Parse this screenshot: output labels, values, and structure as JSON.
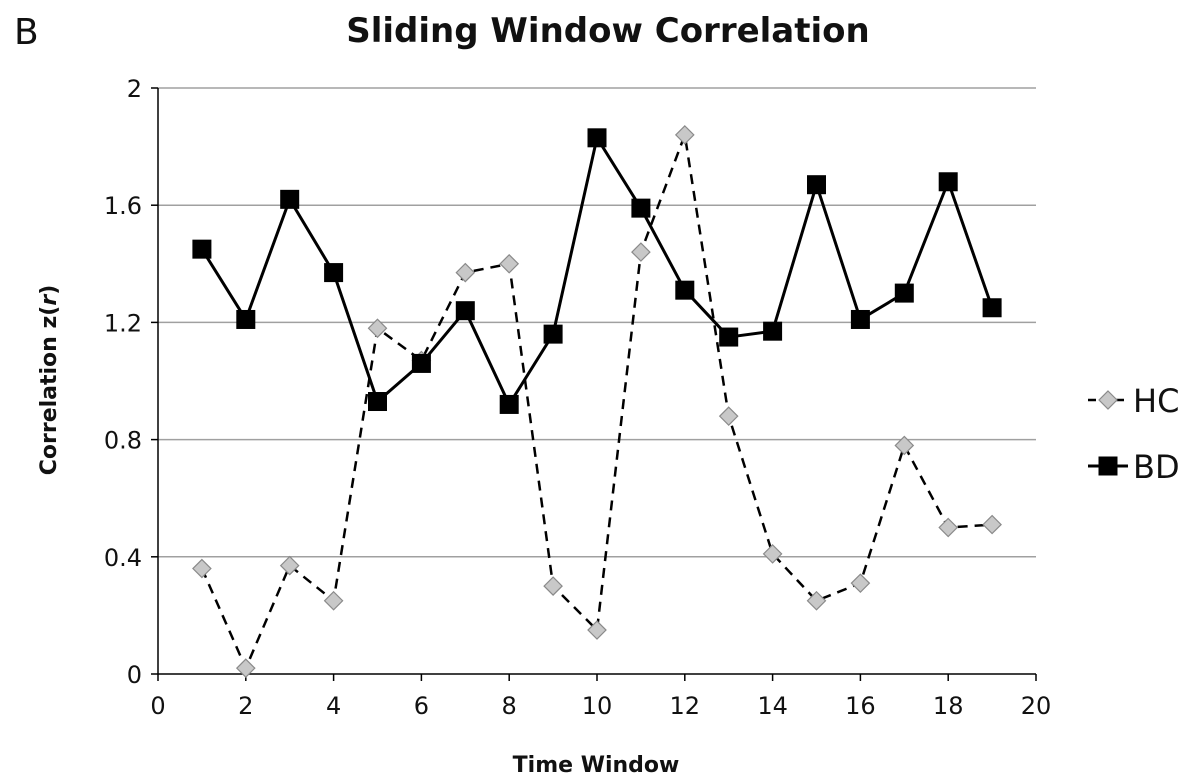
{
  "chart_data": {
    "type": "line",
    "panel_label": "B",
    "title": "Sliding Window Correlation",
    "xlabel": "Time Window",
    "ylabel_main": "Correlation z(",
    "ylabel_var": "r",
    "ylabel_end": ")",
    "xlim": [
      0,
      20
    ],
    "ylim": [
      0,
      2
    ],
    "x_ticks": [
      "0",
      "2",
      "4",
      "6",
      "8",
      "10",
      "12",
      "14",
      "16",
      "18",
      "20"
    ],
    "y_ticks": [
      "0",
      "0.4",
      "0.8",
      "1.2",
      "1.6",
      "2"
    ],
    "grid": "horizontal",
    "legend_position": "right",
    "series": [
      {
        "name": "HC",
        "marker": "diamond",
        "line_style": "dashed",
        "color": "#c8c8c8",
        "x": [
          1,
          2,
          3,
          4,
          5,
          6,
          7,
          8,
          9,
          10,
          11,
          12,
          13,
          14,
          15,
          16,
          17,
          18,
          19
        ],
        "values": [
          0.36,
          0.02,
          0.37,
          0.25,
          1.18,
          1.07,
          1.37,
          1.4,
          0.3,
          0.15,
          1.44,
          1.84,
          0.88,
          0.41,
          0.25,
          0.31,
          0.78,
          0.5,
          0.51
        ]
      },
      {
        "name": "BD",
        "marker": "square",
        "line_style": "solid",
        "color": "#000000",
        "x": [
          1,
          2,
          3,
          4,
          5,
          6,
          7,
          8,
          9,
          10,
          11,
          12,
          13,
          14,
          15,
          16,
          17,
          18,
          19
        ],
        "values": [
          1.45,
          1.21,
          1.62,
          1.37,
          0.93,
          1.06,
          1.24,
          0.92,
          1.16,
          1.83,
          1.59,
          1.31,
          1.15,
          1.17,
          1.67,
          1.21,
          1.3,
          1.68,
          1.25
        ]
      }
    ]
  }
}
